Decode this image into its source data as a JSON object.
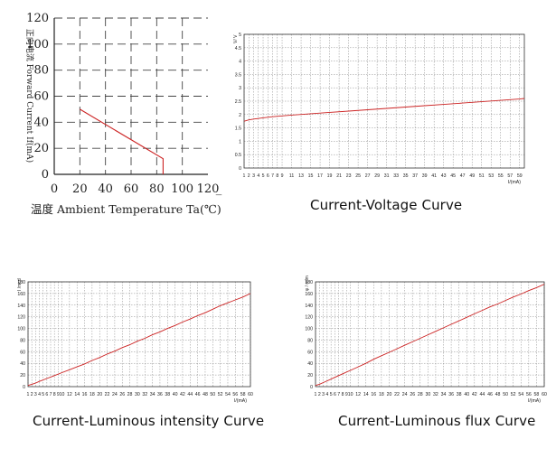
{
  "charts": [
    {
      "chart_data": {
        "type": "line",
        "title": "",
        "xlabel": "温度 Ambient Temperature Ta(℃)",
        "ylabel": "正向电流 Forward Current If(mA)",
        "xlim": [
          0,
          120
        ],
        "ylim": [
          0,
          120
        ],
        "xticks": [
          0,
          20,
          40,
          60,
          80,
          100,
          120
        ],
        "yticks": [
          0,
          20,
          40,
          60,
          80,
          100,
          120
        ],
        "grid": true,
        "series": [
          {
            "x": [
              20,
              85,
              85
            ],
            "y": [
              50,
              12,
              0
            ]
          }
        ]
      },
      "extra_x_tick": "_",
      "colors": {
        "line": "#cc2222",
        "axis": "#222222",
        "grid": "#444444"
      }
    },
    {
      "caption": "Current-Voltage Curve",
      "chart_data": {
        "type": "line",
        "title": "",
        "xlabel": "I/(mA)",
        "ylabel": "V/ V",
        "xlim": [
          1,
          60
        ],
        "ylim": [
          0,
          5
        ],
        "xticks": [
          1,
          2,
          3,
          4,
          5,
          6,
          7,
          8,
          9,
          11,
          13,
          15,
          17,
          19,
          21,
          23,
          25,
          27,
          29,
          31,
          33,
          35,
          37,
          39,
          41,
          43,
          45,
          47,
          49,
          51,
          53,
          55,
          57,
          59
        ],
        "yticks": [
          0,
          0.5,
          1,
          1.5,
          2,
          2.5,
          3,
          3.5,
          4,
          4.5,
          5
        ],
        "grid": true,
        "series": [
          {
            "x": [
              1,
              2,
              3,
              5,
              7,
              9,
              11,
              15,
              19,
              23,
              27,
              31,
              35,
              39,
              43,
              47,
              51,
              55,
              59,
              60
            ],
            "y": [
              1.75,
              1.8,
              1.83,
              1.88,
              1.92,
              1.95,
              1.98,
              2.03,
              2.08,
              2.13,
              2.18,
              2.23,
              2.28,
              2.33,
              2.38,
              2.43,
              2.48,
              2.53,
              2.58,
              2.6
            ]
          }
        ]
      },
      "colors": {
        "line": "#cc2222",
        "axis": "#333333",
        "grid": "#888888"
      }
    },
    {
      "caption": "Current-Luminous intensity Curve",
      "chart_data": {
        "type": "line",
        "title": "",
        "xlabel": "I/(mA)",
        "ylabel": "I /mcd",
        "xlim": [
          1,
          60
        ],
        "ylim": [
          0,
          180
        ],
        "xticks": [
          1,
          2,
          3,
          4,
          5,
          6,
          7,
          8,
          9,
          10,
          12,
          14,
          16,
          18,
          20,
          22,
          24,
          26,
          28,
          30,
          32,
          34,
          36,
          38,
          40,
          42,
          44,
          46,
          48,
          50,
          52,
          54,
          56,
          58,
          60
        ],
        "yticks": [
          0,
          20,
          40,
          60,
          80,
          100,
          120,
          140,
          160,
          180
        ],
        "grid": true,
        "series": [
          {
            "x": [
              1,
              2,
              3,
              4,
              6,
              8,
              10,
              12,
              14,
              16,
              18,
              20,
              22,
              24,
              26,
              28,
              30,
              32,
              34,
              36,
              38,
              40,
              42,
              44,
              46,
              48,
              50,
              52,
              54,
              56,
              58,
              60
            ],
            "y": [
              2,
              4,
              6,
              9,
              14,
              19,
              24,
              29,
              34,
              39,
              45,
              50,
              56,
              61,
              67,
              72,
              78,
              83,
              89,
              94,
              100,
              105,
              111,
              116,
              122,
              127,
              133,
              139,
              144,
              149,
              154,
              160
            ]
          }
        ]
      },
      "colors": {
        "line": "#cc2222",
        "axis": "#333333",
        "grid": "#888888"
      }
    },
    {
      "caption": "Current-Luminous flux Curve",
      "chart_data": {
        "type": "line",
        "title": "",
        "xlabel": "I/(mA)",
        "ylabel": "φ / mlm",
        "xlim": [
          1,
          60
        ],
        "ylim": [
          0,
          180
        ],
        "xticks": [
          1,
          2,
          3,
          4,
          5,
          6,
          7,
          8,
          9,
          10,
          12,
          14,
          16,
          18,
          20,
          22,
          24,
          26,
          28,
          30,
          32,
          34,
          36,
          38,
          40,
          42,
          44,
          46,
          48,
          50,
          52,
          54,
          56,
          58,
          60
        ],
        "yticks": [
          0,
          20,
          40,
          60,
          80,
          100,
          120,
          140,
          160,
          180
        ],
        "grid": true,
        "series": [
          {
            "x": [
              1,
              2,
              3,
              4,
              6,
              8,
              10,
              12,
              14,
              16,
              18,
              20,
              22,
              24,
              26,
              28,
              30,
              32,
              34,
              36,
              38,
              40,
              42,
              44,
              46,
              48,
              50,
              52,
              54,
              56,
              58,
              60
            ],
            "y": [
              2,
              4,
              7,
              10,
              16,
              22,
              28,
              34,
              40,
              47,
              53,
              59,
              65,
              71,
              77,
              83,
              89,
              95,
              101,
              107,
              113,
              119,
              125,
              131,
              137,
              142,
              148,
              154,
              159,
              165,
              170,
              176
            ]
          }
        ]
      },
      "colors": {
        "line": "#cc2222",
        "axis": "#333333",
        "grid": "#888888"
      }
    }
  ]
}
